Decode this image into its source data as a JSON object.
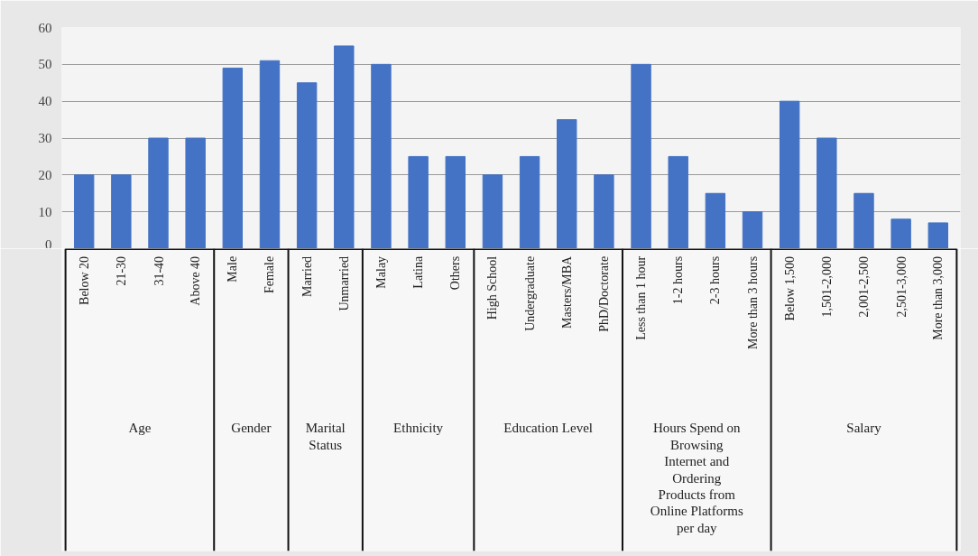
{
  "chart_data": {
    "type": "bar",
    "categories": [
      "Below 20",
      "21-30",
      "31-40",
      "Above 40",
      "Male",
      "Female",
      "Married",
      "Unmarried",
      "Malay",
      "Latina",
      "Others",
      "High School",
      "Undergraduate",
      "Masters/MBA",
      "PhD/Doctorate",
      "Less than 1 hour",
      "1-2 hours",
      "2-3 hours",
      "More than 3 hours",
      "Below 1,500",
      "1,501-2,000",
      "2,001-2,500",
      "2,501-3,000",
      "More than 3,000"
    ],
    "values": [
      20,
      20,
      30,
      30,
      49,
      51,
      45,
      55,
      50,
      25,
      25,
      20,
      25,
      35,
      20,
      50,
      25,
      15,
      10,
      40,
      30,
      15,
      8,
      7
    ],
    "color": "#4472c4",
    "ylim": [
      0,
      60
    ],
    "yticks": [
      0,
      10,
      20,
      30,
      40,
      50,
      60
    ],
    "grid": "y",
    "annotations": [
      "Age",
      "Gender",
      "Marital Status",
      "Ethnicity",
      "Education Level",
      "Hours Spend on Browsing Internet and Ordering Products from Online Platforms per day",
      "Salary"
    ]
  }
}
